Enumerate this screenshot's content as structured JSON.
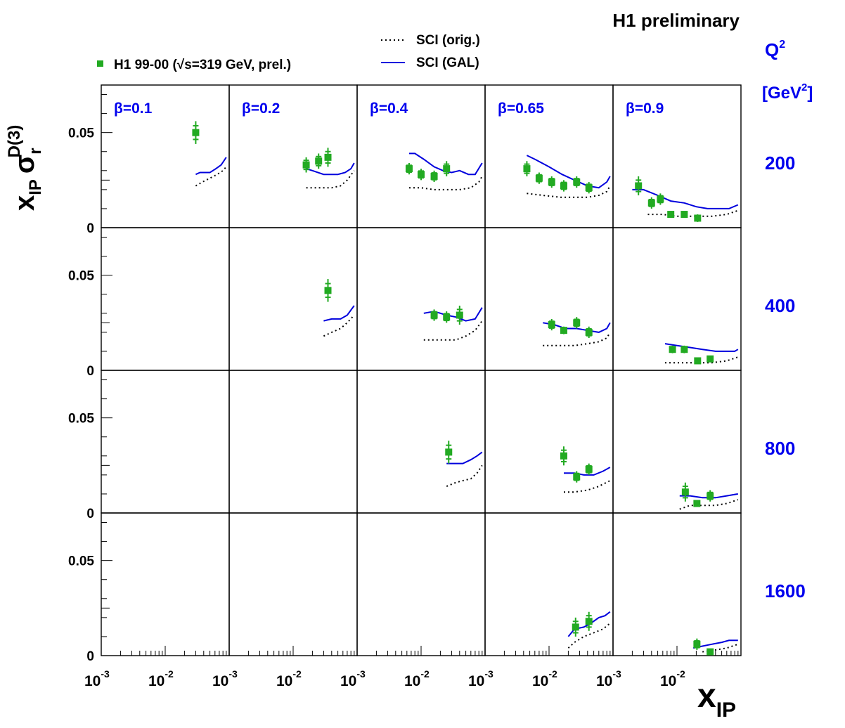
{
  "header": {
    "title": "H1 preliminary"
  },
  "legend": {
    "data_label": "H1 99-00 (√s=319 GeV, prel.)",
    "orig_label": "SCI (orig.)",
    "gal_label": "SCI (GAL)"
  },
  "axes": {
    "y_title_main": "x",
    "y_title_main_sub": "IP",
    "y_title_sigma": "σ",
    "y_title_sigma_sub": "r",
    "y_title_sigma_sup": "D(3)",
    "x_title_main": "x",
    "x_title_sub": "IP",
    "q2_header_main": "Q",
    "q2_header_sup": "2",
    "q2_unit_open": "[GeV",
    "q2_unit_sup": "2",
    "q2_unit_close": "]",
    "y_tick_labels": [
      "0.05",
      "0"
    ],
    "x_tick_mantissa": "10",
    "x_tick_exponents": [
      "-3",
      "-2"
    ]
  },
  "colors": {
    "data": "#22aa22",
    "gal": "#0000dd",
    "orig": "#000000",
    "label_blue": "#0000ee"
  },
  "chart_data": {
    "type": "scatter",
    "title": "H1 preliminary",
    "xlabel": "x_IP",
    "ylabel": "x_IP σ_r^D(3)",
    "xscale": "log",
    "xlim": [
      0.001,
      0.1
    ],
    "ylim": [
      0,
      0.075
    ],
    "y_ticks": [
      0,
      0.05
    ],
    "x_ticks": [
      0.001,
      0.01
    ],
    "column_labels": [
      "β=0.1",
      "β=0.2",
      "β=0.4",
      "β=0.65",
      "β=0.9"
    ],
    "row_labels": [
      "200",
      "400",
      "800",
      "1600"
    ],
    "series": [
      {
        "name": "H1 99-00 (√s=319 GeV, prel.)"
      },
      {
        "name": "SCI (orig.)"
      },
      {
        "name": "SCI (GAL)"
      }
    ],
    "panels": [
      {
        "row": 0,
        "col": 0,
        "points": [
          {
            "x": 0.03,
            "y": 0.05,
            "e": 0.006
          }
        ],
        "gal": [
          [
            0.03,
            0.028
          ],
          [
            0.035,
            0.029
          ],
          [
            0.042,
            0.029
          ],
          [
            0.05,
            0.029
          ],
          [
            0.062,
            0.031
          ],
          [
            0.075,
            0.033
          ],
          [
            0.09,
            0.037
          ]
        ],
        "orig": [
          [
            0.03,
            0.022
          ],
          [
            0.038,
            0.024
          ],
          [
            0.05,
            0.026
          ],
          [
            0.065,
            0.028
          ],
          [
            0.08,
            0.03
          ],
          [
            0.09,
            0.032
          ]
        ]
      },
      {
        "row": 0,
        "col": 1,
        "points": [
          {
            "x": 0.016,
            "y": 0.033,
            "e": 0.004
          },
          {
            "x": 0.025,
            "y": 0.035,
            "e": 0.004
          },
          {
            "x": 0.035,
            "y": 0.037,
            "e": 0.005
          }
        ],
        "gal": [
          [
            0.016,
            0.031
          ],
          [
            0.02,
            0.03
          ],
          [
            0.03,
            0.028
          ],
          [
            0.04,
            0.028
          ],
          [
            0.05,
            0.028
          ],
          [
            0.065,
            0.029
          ],
          [
            0.08,
            0.031
          ],
          [
            0.09,
            0.034
          ]
        ],
        "orig": [
          [
            0.016,
            0.021
          ],
          [
            0.025,
            0.021
          ],
          [
            0.04,
            0.021
          ],
          [
            0.055,
            0.022
          ],
          [
            0.07,
            0.025
          ],
          [
            0.09,
            0.03
          ]
        ]
      },
      {
        "row": 0,
        "col": 2,
        "points": [
          {
            "x": 0.0065,
            "y": 0.031,
            "e": 0.003
          },
          {
            "x": 0.01,
            "y": 0.028,
            "e": 0.003
          },
          {
            "x": 0.016,
            "y": 0.027,
            "e": 0.003
          },
          {
            "x": 0.025,
            "y": 0.031,
            "e": 0.004
          }
        ],
        "gal": [
          [
            0.0065,
            0.039
          ],
          [
            0.008,
            0.039
          ],
          [
            0.011,
            0.036
          ],
          [
            0.016,
            0.032
          ],
          [
            0.022,
            0.03
          ],
          [
            0.03,
            0.029
          ],
          [
            0.04,
            0.03
          ],
          [
            0.055,
            0.028
          ],
          [
            0.07,
            0.028
          ],
          [
            0.09,
            0.034
          ]
        ],
        "orig": [
          [
            0.0065,
            0.021
          ],
          [
            0.01,
            0.021
          ],
          [
            0.016,
            0.02
          ],
          [
            0.025,
            0.02
          ],
          [
            0.04,
            0.02
          ],
          [
            0.06,
            0.021
          ],
          [
            0.08,
            0.024
          ],
          [
            0.09,
            0.027
          ]
        ]
      },
      {
        "row": 0,
        "col": 3,
        "points": [
          {
            "x": 0.0045,
            "y": 0.031,
            "e": 0.004
          },
          {
            "x": 0.007,
            "y": 0.026,
            "e": 0.003
          },
          {
            "x": 0.011,
            "y": 0.024,
            "e": 0.003
          },
          {
            "x": 0.017,
            "y": 0.022,
            "e": 0.003
          },
          {
            "x": 0.027,
            "y": 0.024,
            "e": 0.003
          },
          {
            "x": 0.042,
            "y": 0.021,
            "e": 0.003
          }
        ],
        "gal": [
          [
            0.0045,
            0.038
          ],
          [
            0.006,
            0.036
          ],
          [
            0.01,
            0.032
          ],
          [
            0.016,
            0.028
          ],
          [
            0.025,
            0.025
          ],
          [
            0.04,
            0.022
          ],
          [
            0.06,
            0.021
          ],
          [
            0.08,
            0.024
          ],
          [
            0.09,
            0.027
          ]
        ],
        "orig": [
          [
            0.0045,
            0.018
          ],
          [
            0.008,
            0.017
          ],
          [
            0.015,
            0.016
          ],
          [
            0.025,
            0.016
          ],
          [
            0.04,
            0.016
          ],
          [
            0.06,
            0.017
          ],
          [
            0.08,
            0.019
          ],
          [
            0.09,
            0.022
          ]
        ]
      },
      {
        "row": 0,
        "col": 4,
        "points": [
          {
            "x": 0.0025,
            "y": 0.022,
            "e": 0.005
          },
          {
            "x": 0.004,
            "y": 0.013,
            "e": 0.003
          },
          {
            "x": 0.0055,
            "y": 0.015,
            "e": 0.003
          },
          {
            "x": 0.008,
            "y": 0.007,
            "e": 0.001
          },
          {
            "x": 0.013,
            "y": 0.007,
            "e": 0.001
          },
          {
            "x": 0.021,
            "y": 0.005,
            "e": 0.002
          }
        ],
        "gal": [
          [
            0.002,
            0.02
          ],
          [
            0.003,
            0.02
          ],
          [
            0.005,
            0.017
          ],
          [
            0.008,
            0.014
          ],
          [
            0.013,
            0.013
          ],
          [
            0.02,
            0.011
          ],
          [
            0.03,
            0.01
          ],
          [
            0.045,
            0.01
          ],
          [
            0.065,
            0.01
          ],
          [
            0.09,
            0.012
          ]
        ],
        "orig": [
          [
            0.0035,
            0.007
          ],
          [
            0.006,
            0.007
          ],
          [
            0.01,
            0.006
          ],
          [
            0.02,
            0.006
          ],
          [
            0.035,
            0.006
          ],
          [
            0.06,
            0.007
          ],
          [
            0.09,
            0.009
          ]
        ]
      },
      {
        "row": 1,
        "col": 1,
        "points": [
          {
            "x": 0.035,
            "y": 0.042,
            "e": 0.006
          }
        ],
        "gal": [
          [
            0.03,
            0.026
          ],
          [
            0.04,
            0.027
          ],
          [
            0.055,
            0.027
          ],
          [
            0.07,
            0.029
          ],
          [
            0.09,
            0.034
          ]
        ],
        "orig": [
          [
            0.03,
            0.018
          ],
          [
            0.04,
            0.02
          ],
          [
            0.055,
            0.022
          ],
          [
            0.07,
            0.025
          ],
          [
            0.09,
            0.029
          ]
        ]
      },
      {
        "row": 1,
        "col": 2,
        "points": [
          {
            "x": 0.016,
            "y": 0.029,
            "e": 0.003
          },
          {
            "x": 0.025,
            "y": 0.028,
            "e": 0.003
          },
          {
            "x": 0.04,
            "y": 0.029,
            "e": 0.005
          }
        ],
        "gal": [
          [
            0.011,
            0.03
          ],
          [
            0.016,
            0.031
          ],
          [
            0.025,
            0.029
          ],
          [
            0.035,
            0.028
          ],
          [
            0.05,
            0.026
          ],
          [
            0.07,
            0.027
          ],
          [
            0.09,
            0.033
          ]
        ],
        "orig": [
          [
            0.011,
            0.016
          ],
          [
            0.02,
            0.016
          ],
          [
            0.035,
            0.016
          ],
          [
            0.05,
            0.018
          ],
          [
            0.07,
            0.021
          ],
          [
            0.09,
            0.026
          ]
        ]
      },
      {
        "row": 1,
        "col": 3,
        "points": [
          {
            "x": 0.011,
            "y": 0.024,
            "e": 0.003
          },
          {
            "x": 0.017,
            "y": 0.021,
            "e": 0.002
          },
          {
            "x": 0.027,
            "y": 0.025,
            "e": 0.003
          },
          {
            "x": 0.042,
            "y": 0.02,
            "e": 0.003
          }
        ],
        "gal": [
          [
            0.008,
            0.025
          ],
          [
            0.012,
            0.024
          ],
          [
            0.018,
            0.022
          ],
          [
            0.027,
            0.022
          ],
          [
            0.04,
            0.021
          ],
          [
            0.06,
            0.02
          ],
          [
            0.08,
            0.022
          ],
          [
            0.09,
            0.025
          ]
        ],
        "orig": [
          [
            0.008,
            0.013
          ],
          [
            0.015,
            0.013
          ],
          [
            0.025,
            0.013
          ],
          [
            0.04,
            0.014
          ],
          [
            0.06,
            0.015
          ],
          [
            0.08,
            0.017
          ],
          [
            0.09,
            0.02
          ]
        ]
      },
      {
        "row": 1,
        "col": 4,
        "points": [
          {
            "x": 0.0085,
            "y": 0.011,
            "e": 0.002
          },
          {
            "x": 0.013,
            "y": 0.011,
            "e": 0.002
          },
          {
            "x": 0.021,
            "y": 0.005,
            "e": 0.001
          },
          {
            "x": 0.033,
            "y": 0.006,
            "e": 0.001
          }
        ],
        "gal": [
          [
            0.0065,
            0.014
          ],
          [
            0.01,
            0.013
          ],
          [
            0.016,
            0.012
          ],
          [
            0.025,
            0.011
          ],
          [
            0.04,
            0.01
          ],
          [
            0.06,
            0.01
          ],
          [
            0.08,
            0.01
          ],
          [
            0.09,
            0.011
          ]
        ],
        "orig": [
          [
            0.0065,
            0.004
          ],
          [
            0.012,
            0.004
          ],
          [
            0.02,
            0.004
          ],
          [
            0.035,
            0.004
          ],
          [
            0.06,
            0.005
          ],
          [
            0.09,
            0.007
          ]
        ]
      },
      {
        "row": 2,
        "col": 2,
        "points": [
          {
            "x": 0.027,
            "y": 0.032,
            "e": 0.006
          }
        ],
        "gal": [
          [
            0.025,
            0.026
          ],
          [
            0.035,
            0.026
          ],
          [
            0.045,
            0.026
          ],
          [
            0.06,
            0.028
          ],
          [
            0.075,
            0.03
          ],
          [
            0.09,
            0.032
          ]
        ],
        "orig": [
          [
            0.025,
            0.014
          ],
          [
            0.035,
            0.016
          ],
          [
            0.045,
            0.017
          ],
          [
            0.06,
            0.018
          ],
          [
            0.075,
            0.021
          ],
          [
            0.09,
            0.025
          ]
        ]
      },
      {
        "row": 2,
        "col": 3,
        "points": [
          {
            "x": 0.017,
            "y": 0.03,
            "e": 0.005
          },
          {
            "x": 0.027,
            "y": 0.019,
            "e": 0.003
          },
          {
            "x": 0.042,
            "y": 0.023,
            "e": 0.003
          }
        ],
        "gal": [
          [
            0.017,
            0.021
          ],
          [
            0.025,
            0.021
          ],
          [
            0.035,
            0.02
          ],
          [
            0.05,
            0.02
          ],
          [
            0.07,
            0.022
          ],
          [
            0.09,
            0.024
          ]
        ],
        "orig": [
          [
            0.017,
            0.011
          ],
          [
            0.025,
            0.011
          ],
          [
            0.04,
            0.012
          ],
          [
            0.06,
            0.014
          ],
          [
            0.09,
            0.017
          ]
        ]
      },
      {
        "row": 2,
        "col": 4,
        "points": [
          {
            "x": 0.0135,
            "y": 0.011,
            "e": 0.005
          },
          {
            "x": 0.0205,
            "y": 0.005,
            "e": 0.001
          },
          {
            "x": 0.033,
            "y": 0.009,
            "e": 0.003
          }
        ],
        "gal": [
          [
            0.011,
            0.009
          ],
          [
            0.016,
            0.009
          ],
          [
            0.025,
            0.008
          ],
          [
            0.04,
            0.008
          ],
          [
            0.06,
            0.009
          ],
          [
            0.09,
            0.01
          ]
        ],
        "orig": [
          [
            0.011,
            0.002
          ],
          [
            0.016,
            0.004
          ],
          [
            0.025,
            0.004
          ],
          [
            0.04,
            0.004
          ],
          [
            0.06,
            0.005
          ],
          [
            0.09,
            0.007
          ]
        ]
      },
      {
        "row": 3,
        "col": 3,
        "points": [
          {
            "x": 0.026,
            "y": 0.015,
            "e": 0.005
          },
          {
            "x": 0.042,
            "y": 0.018,
            "e": 0.005
          }
        ],
        "gal": [
          [
            0.02,
            0.01
          ],
          [
            0.025,
            0.014
          ],
          [
            0.035,
            0.015
          ],
          [
            0.045,
            0.017
          ],
          [
            0.06,
            0.02
          ],
          [
            0.075,
            0.021
          ],
          [
            0.09,
            0.023
          ]
        ],
        "orig": [
          [
            0.02,
            0.004
          ],
          [
            0.025,
            0.007
          ],
          [
            0.035,
            0.01
          ],
          [
            0.05,
            0.012
          ],
          [
            0.07,
            0.014
          ],
          [
            0.09,
            0.017
          ]
        ]
      },
      {
        "row": 3,
        "col": 4,
        "points": [
          {
            "x": 0.0205,
            "y": 0.006,
            "e": 0.003
          },
          {
            "x": 0.033,
            "y": 0.002,
            "e": 0.001
          }
        ],
        "gal": [
          [
            0.018,
            0.004
          ],
          [
            0.025,
            0.005
          ],
          [
            0.035,
            0.006
          ],
          [
            0.05,
            0.007
          ],
          [
            0.065,
            0.008
          ],
          [
            0.09,
            0.008
          ]
        ],
        "orig": [
          [
            0.025,
            0.002
          ],
          [
            0.04,
            0.003
          ],
          [
            0.06,
            0.004
          ],
          [
            0.09,
            0.006
          ]
        ]
      }
    ]
  }
}
